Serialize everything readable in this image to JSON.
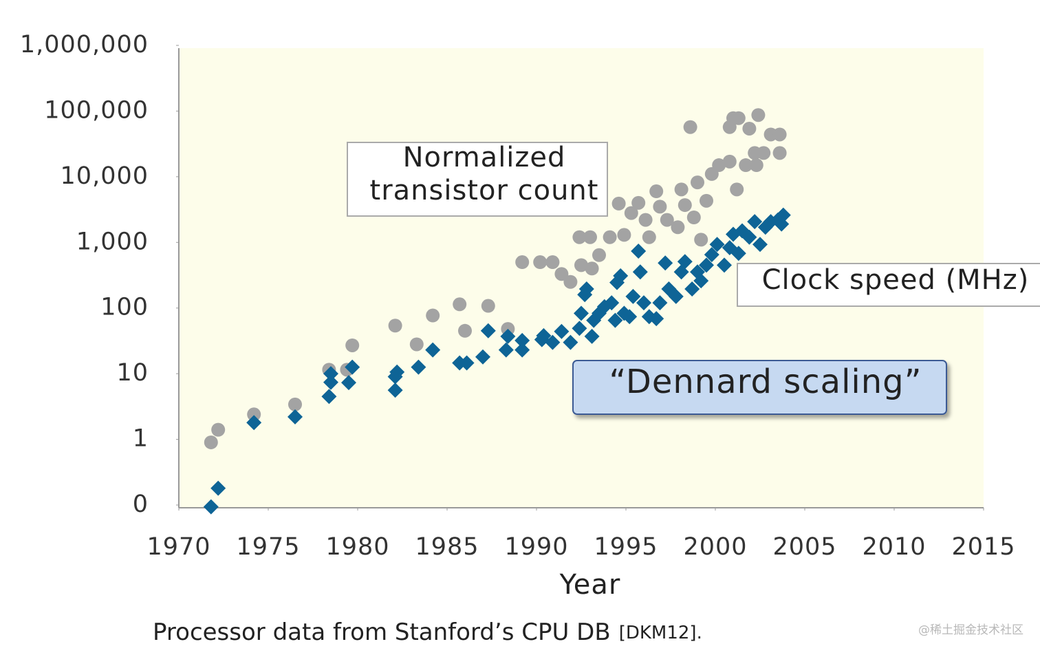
{
  "chart_data": {
    "type": "scatter",
    "x_label": "Year",
    "caption": "Processor data from Stanford’s CPU DB",
    "caption_ref": "[DKM12].",
    "watermark": "@稀土掘金技术社区",
    "annotations": [
      {
        "lines": [
          "Normalized",
          "transistor count"
        ]
      },
      {
        "lines": [
          "Clock speed (MHz)"
        ]
      },
      {
        "lines": [
          "“Dennard scaling”"
        ]
      }
    ],
    "xlim": [
      1970,
      2015
    ],
    "xticks": [
      1970,
      1975,
      1980,
      1985,
      1990,
      1995,
      2000,
      2005,
      2010,
      2015
    ],
    "ylim": [
      0.1,
      1000000
    ],
    "yscale": "log",
    "yticks": [
      {
        "value": 0.1,
        "label": "0"
      },
      1,
      10,
      100,
      {
        "value": 1000,
        "label": "1,000"
      },
      {
        "value": 10000,
        "label": "10,000"
      },
      {
        "value": 100000,
        "label": "100,000"
      },
      {
        "value": 1000000,
        "label": "1,000,000"
      }
    ],
    "background": "#fdfdea",
    "series": [
      {
        "color": "#a3a3a3",
        "marker": "circle",
        "x": [
          1971.8,
          1972.2,
          1974.2,
          1976.5,
          1978.4,
          1979.4,
          1979.7,
          1982.1,
          1983.3,
          1984.2,
          1985.7,
          1986.0,
          1987.3,
          1988.4,
          1989.2,
          1990.2,
          1990.9,
          1991.4,
          1991.9,
          1992.4,
          1993.0,
          1992.5,
          1993.1,
          1993.5,
          1994.1,
          1994.6,
          1994.9,
          1995.3,
          1995.7,
          1996.1,
          1996.3,
          1996.7,
          1996.9,
          1997.3,
          1997.9,
          1998.1,
          1998.3,
          1998.6,
          1998.8,
          1999.0,
          1999.2,
          1999.5,
          1999.8,
          2000.2,
          2000.8,
          2000.8,
          2001.0,
          2001.3,
          2001.2,
          2001.7,
          2001.9,
          2002.2,
          2002.4,
          2002.3,
          2002.7,
          2003.1,
          2003.6,
          2003.6
        ],
        "values": [
          0.9,
          1.4,
          2.4,
          3.4,
          11.5,
          11.5,
          27,
          54,
          28,
          77,
          114,
          45,
          108,
          48,
          500,
          500,
          500,
          330,
          250,
          1200,
          1200,
          450,
          400,
          640,
          1200,
          3900,
          1300,
          2800,
          4000,
          2200,
          1200,
          6000,
          3500,
          2200,
          1700,
          6400,
          3700,
          57000,
          2400,
          8200,
          1100,
          4300,
          11000,
          15000,
          17000,
          57000,
          78000,
          78000,
          6400,
          15000,
          54000,
          23000,
          87000,
          15000,
          23000,
          44000,
          44000,
          23000
        ]
      },
      {
        "color": "#0e6496",
        "marker": "diamond",
        "x": [
          1971.8,
          1972.2,
          1974.2,
          1976.5,
          1978.4,
          1978.5,
          1978.5,
          1979.5,
          1979.7,
          1982.1,
          1982.1,
          1982.2,
          1983.4,
          1984.2,
          1985.7,
          1986.1,
          1987.0,
          1987.3,
          1988.3,
          1988.4,
          1989.2,
          1989.2,
          1990.3,
          1990.4,
          1990.9,
          1991.4,
          1991.9,
          1992.4,
          1992.5,
          1992.7,
          1992.8,
          1993.1,
          1993.2,
          1993.5,
          1993.8,
          1994.2,
          1994.4,
          1994.5,
          1994.7,
          1994.9,
          1995.2,
          1995.4,
          1995.7,
          1995.8,
          1996.0,
          1996.3,
          1996.7,
          1996.9,
          1997.2,
          1997.4,
          1997.8,
          1998.1,
          1998.3,
          1998.7,
          1999.0,
          1999.2,
          1999.5,
          1999.8,
          2000.1,
          2000.5,
          2000.8,
          2001.0,
          2001.3,
          2001.5,
          2001.9,
          2002.2,
          2002.5,
          2002.8,
          2003.1,
          2003.5,
          2003.7,
          2003.8
        ],
        "values": [
          0.094,
          0.18,
          1.8,
          2.2,
          4.5,
          7.4,
          10,
          7.3,
          12.6,
          5.6,
          9,
          10.6,
          12.6,
          23,
          14.6,
          14.6,
          18,
          45,
          23,
          37,
          23,
          32,
          33,
          38,
          30,
          44,
          30,
          49,
          83,
          160,
          195,
          37,
          65,
          83,
          105,
          120,
          65,
          245,
          310,
          83,
          74,
          150,
          735,
          355,
          120,
          74,
          69,
          120,
          485,
          195,
          150,
          355,
          510,
          195,
          355,
          260,
          450,
          650,
          930,
          450,
          830,
          1330,
          680,
          1500,
          1200,
          2070,
          930,
          1700,
          2070,
          2200,
          1900,
          2600
        ]
      }
    ]
  }
}
